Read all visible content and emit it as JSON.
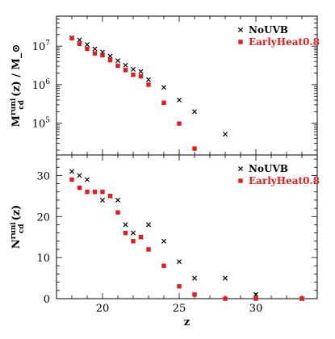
{
  "chart_data": [
    {
      "type": "scatter",
      "panel": "top",
      "ylabel": "M_cd^runi(z) / M_⊙",
      "yscale": "log",
      "xlim": [
        17,
        34
      ],
      "ylim": [
        15000,
        60000000
      ],
      "xticks": [
        20,
        25,
        30
      ],
      "yticks": [
        100000,
        1000000,
        10000000
      ],
      "ytick_labels": [
        {
          "base": "10",
          "exp": "5"
        },
        {
          "base": "10",
          "exp": "6"
        },
        {
          "base": "10",
          "exp": "7"
        }
      ],
      "legend_position": "top-right",
      "series": [
        {
          "name": "NoUVB",
          "marker": "x",
          "color": "#000000",
          "points": [
            [
              18,
              16500000
            ],
            [
              18.5,
              14500000
            ],
            [
              19,
              11000000
            ],
            [
              19.5,
              8500000
            ],
            [
              20,
              7000000
            ],
            [
              20.5,
              5500000
            ],
            [
              21,
              4200000
            ],
            [
              21.5,
              3200000
            ],
            [
              22,
              2500000
            ],
            [
              22.5,
              2200000
            ],
            [
              23,
              1350000
            ],
            [
              24,
              850000
            ],
            [
              25,
              400000
            ],
            [
              26,
              200000
            ],
            [
              28,
              52000
            ]
          ]
        },
        {
          "name": "EarlyHeat0.8",
          "marker": "square",
          "color": "#e8191c",
          "points": [
            [
              18,
              16000000
            ],
            [
              18.5,
              11500000
            ],
            [
              19,
              8500000
            ],
            [
              19.5,
              6500000
            ],
            [
              20,
              5800000
            ],
            [
              20.5,
              4300000
            ],
            [
              21,
              3100000
            ],
            [
              21.5,
              2400000
            ],
            [
              22,
              1800000
            ],
            [
              22.5,
              1650000
            ],
            [
              23,
              1000000
            ],
            [
              24,
              340000
            ],
            [
              25,
              98000
            ],
            [
              26,
              22000
            ]
          ]
        }
      ]
    },
    {
      "type": "scatter",
      "panel": "bottom",
      "xlabel": "z",
      "ylabel": "N_cd^runi(z)",
      "xlim": [
        17,
        34
      ],
      "ylim": [
        0,
        35
      ],
      "xticks": [
        20,
        25,
        30
      ],
      "yticks": [
        0,
        10,
        20,
        30
      ],
      "legend_position": "top-right",
      "series": [
        {
          "name": "NoUVB",
          "marker": "x",
          "color": "#000000",
          "points": [
            [
              18,
              31
            ],
            [
              18.5,
              30
            ],
            [
              19,
              29
            ],
            [
              20,
              24
            ],
            [
              20.5,
              25
            ],
            [
              21,
              24
            ],
            [
              21.5,
              18
            ],
            [
              22,
              16
            ],
            [
              22.5,
              15
            ],
            [
              23,
              18
            ],
            [
              24,
              14
            ],
            [
              25,
              9
            ],
            [
              26,
              5
            ],
            [
              28,
              5
            ],
            [
              30,
              1
            ],
            [
              33,
              0
            ]
          ]
        },
        {
          "name": "EarlyHeat0.8",
          "marker": "square",
          "color": "#e8191c",
          "points": [
            [
              18,
              29
            ],
            [
              18.5,
              27
            ],
            [
              19,
              26
            ],
            [
              19.5,
              26
            ],
            [
              20,
              26
            ],
            [
              20.5,
              25
            ],
            [
              21,
              21
            ],
            [
              21.5,
              16
            ],
            [
              22,
              14
            ],
            [
              22.5,
              15
            ],
            [
              23,
              12
            ],
            [
              24,
              8
            ],
            [
              25,
              3
            ],
            [
              26,
              1
            ],
            [
              28,
              0
            ],
            [
              30,
              0
            ],
            [
              33,
              0
            ]
          ]
        }
      ]
    }
  ]
}
